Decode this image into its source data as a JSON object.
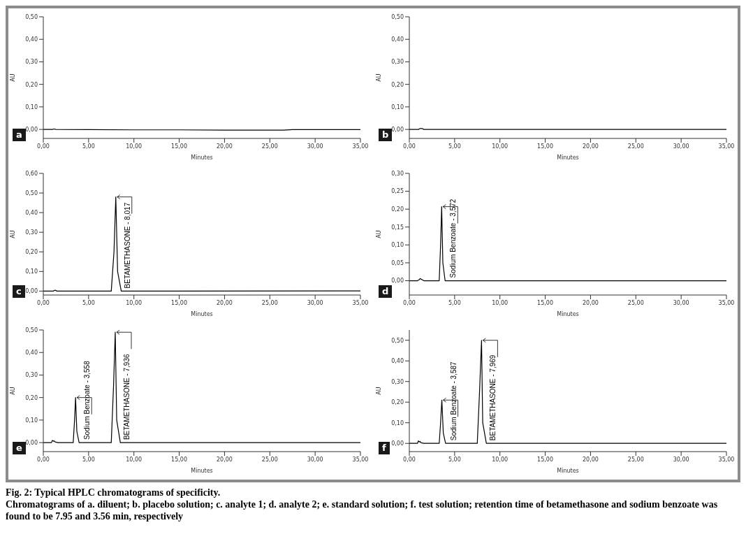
{
  "chart_data": [
    {
      "type": "line",
      "xlabel": "Minutes",
      "ylabel": "AU",
      "annotations": [
        "a"
      ],
      "x": [
        0,
        1.0,
        1.2,
        1.4,
        5,
        10,
        15,
        20,
        26.5,
        27.5,
        30,
        35
      ],
      "series": [
        {
          "color": "#000000",
          "values": [
            0.0,
            0.0,
            0.002,
            0.0,
            -0.001,
            -0.002,
            -0.002,
            -0.003,
            -0.003,
            -0.001,
            -0.001,
            -0.001
          ]
        }
      ],
      "xlim": [
        0,
        35
      ],
      "xticks": [
        {
          "value": 0,
          "label": "0,00"
        },
        {
          "value": 5,
          "label": "5,00"
        },
        {
          "value": 10,
          "label": "10,00"
        },
        {
          "value": 15,
          "label": "15,00"
        },
        {
          "value": 20,
          "label": "20,00"
        },
        {
          "value": 25,
          "label": "25,00"
        },
        {
          "value": 30,
          "label": "30,00"
        },
        {
          "value": 35,
          "label": "35,00"
        }
      ],
      "ylim": [
        -0.04,
        0.5
      ],
      "yticks": [
        {
          "value": 0,
          "label": "0,00"
        },
        {
          "value": 0.1,
          "label": "0,10"
        },
        {
          "value": 0.2,
          "label": "0,20"
        },
        {
          "value": 0.3,
          "label": "0,30"
        },
        {
          "value": 0.4,
          "label": "0,40"
        },
        {
          "value": 0.5,
          "label": "0,50"
        }
      ]
    },
    {
      "type": "line",
      "xlabel": "Minutes",
      "ylabel": "AU",
      "annotations": [
        "b"
      ],
      "x": [
        0,
        1.0,
        1.2,
        1.4,
        1.6,
        35
      ],
      "series": [
        {
          "color": "#000000",
          "values": [
            0.0,
            0.0,
            0.004,
            0.004,
            0.0,
            0.0
          ]
        }
      ],
      "xlim": [
        0,
        35
      ],
      "xticks": [
        {
          "value": 0,
          "label": "0,00"
        },
        {
          "value": 5,
          "label": "5,00"
        },
        {
          "value": 10,
          "label": "10,00"
        },
        {
          "value": 15,
          "label": "15,00"
        },
        {
          "value": 20,
          "label": "20,00"
        },
        {
          "value": 25,
          "label": "25,00"
        },
        {
          "value": 30,
          "label": "30,00"
        },
        {
          "value": 35,
          "label": "35,00"
        }
      ],
      "ylim": [
        -0.04,
        0.5
      ],
      "yticks": [
        {
          "value": 0,
          "label": "0,00"
        },
        {
          "value": 0.1,
          "label": "0,10"
        },
        {
          "value": 0.2,
          "label": "0,20"
        },
        {
          "value": 0.3,
          "label": "0,30"
        },
        {
          "value": 0.4,
          "label": "0,40"
        },
        {
          "value": 0.5,
          "label": "0,50"
        }
      ]
    },
    {
      "type": "line",
      "xlabel": "Minutes",
      "ylabel": "AU",
      "annotations": [
        "c",
        {
          "text": "BETAMETHASONE - 8,017",
          "x": 8.0,
          "y": 0.48
        }
      ],
      "x": [
        0,
        1.1,
        1.3,
        1.5,
        7.5,
        7.8,
        8.0,
        8.2,
        8.6,
        32,
        35
      ],
      "series": [
        {
          "color": "#000000",
          "values": [
            0.0,
            0.0,
            0.005,
            0.0,
            0.0,
            0.2,
            0.48,
            0.1,
            0.0,
            0.001,
            0.001
          ]
        }
      ],
      "xlim": [
        0,
        35
      ],
      "xticks": [
        {
          "value": 0,
          "label": "0,00"
        },
        {
          "value": 5,
          "label": "5,00"
        },
        {
          "value": 10,
          "label": "10,00"
        },
        {
          "value": 15,
          "label": "15,00"
        },
        {
          "value": 20,
          "label": "20,00"
        },
        {
          "value": 25,
          "label": "25,00"
        },
        {
          "value": 30,
          "label": "30,00"
        },
        {
          "value": 35,
          "label": "35,00"
        }
      ],
      "ylim": [
        -0.02,
        0.6
      ],
      "yticks": [
        {
          "value": 0,
          "label": "0,00"
        },
        {
          "value": 0.1,
          "label": "0,10"
        },
        {
          "value": 0.2,
          "label": "0,20"
        },
        {
          "value": 0.3,
          "label": "0,30"
        },
        {
          "value": 0.4,
          "label": "0,40"
        },
        {
          "value": 0.5,
          "label": "0,50"
        },
        {
          "value": 0.6,
          "label": "0,60"
        }
      ]
    },
    {
      "type": "line",
      "xlabel": "Minutes",
      "ylabel": "AU",
      "annotations": [
        "d",
        {
          "text": "Sodium Benzoate - 3,572",
          "x": 3.57,
          "y": 0.207
        }
      ],
      "x": [
        0,
        0.9,
        1.1,
        1.2,
        1.4,
        1.6,
        3.3,
        3.45,
        3.57,
        3.7,
        3.95,
        35
      ],
      "series": [
        {
          "color": "#000000",
          "values": [
            0.0,
            0.0,
            0.003,
            0.006,
            0.003,
            0.0,
            0.0,
            0.1,
            0.207,
            0.05,
            0.0,
            0.0
          ]
        }
      ],
      "xlim": [
        0,
        35
      ],
      "xticks": [
        {
          "value": 0,
          "label": "0,00"
        },
        {
          "value": 5,
          "label": "5,00"
        },
        {
          "value": 10,
          "label": "10,00"
        },
        {
          "value": 15,
          "label": "15,00"
        },
        {
          "value": 20,
          "label": "20,00"
        },
        {
          "value": 25,
          "label": "25,00"
        },
        {
          "value": 30,
          "label": "30,00"
        },
        {
          "value": 35,
          "label": "35,00"
        }
      ],
      "ylim": [
        -0.04,
        0.3
      ],
      "yticks": [
        {
          "value": 0,
          "label": "0,00"
        },
        {
          "value": 0.05,
          "label": "0,05"
        },
        {
          "value": 0.1,
          "label": "0,10"
        },
        {
          "value": 0.15,
          "label": "0,15"
        },
        {
          "value": 0.2,
          "label": "0,20"
        },
        {
          "value": 0.25,
          "label": "0,25"
        },
        {
          "value": 0.3,
          "label": "0,30"
        }
      ]
    },
    {
      "type": "line",
      "xlabel": "Minutes",
      "ylabel": "AU",
      "annotations": [
        "e",
        {
          "text": "Sodium Benzoate - 3,558",
          "x": 3.56,
          "y": 0.2
        },
        {
          "text": "BETAMETHASONE - 7,936",
          "x": 7.94,
          "y": 0.49
        }
      ],
      "x": [
        0,
        0.9,
        1.0,
        1.1,
        1.2,
        1.3,
        1.6,
        3.3,
        3.45,
        3.56,
        3.7,
        3.95,
        7.5,
        7.75,
        7.94,
        8.1,
        8.5,
        35
      ],
      "series": [
        {
          "color": "#000000",
          "values": [
            0.0,
            0.0,
            0.01,
            0.006,
            0.008,
            0.003,
            0.0,
            0.0,
            0.1,
            0.2,
            0.05,
            0.0,
            0.0,
            0.25,
            0.49,
            0.1,
            0.0,
            0.0
          ]
        }
      ],
      "xlim": [
        0,
        35
      ],
      "xticks": [
        {
          "value": 0,
          "label": "0,00"
        },
        {
          "value": 5,
          "label": "5,00"
        },
        {
          "value": 10,
          "label": "10,00"
        },
        {
          "value": 15,
          "label": "15,00"
        },
        {
          "value": 20,
          "label": "20,00"
        },
        {
          "value": 25,
          "label": "25,00"
        },
        {
          "value": 30,
          "label": "30,00"
        },
        {
          "value": 35,
          "label": "35,00"
        }
      ],
      "ylim": [
        -0.04,
        0.5
      ],
      "yticks": [
        {
          "value": 0,
          "label": "0,00"
        },
        {
          "value": 0.1,
          "label": "0,10"
        },
        {
          "value": 0.2,
          "label": "0,20"
        },
        {
          "value": 0.3,
          "label": "0,30"
        },
        {
          "value": 0.4,
          "label": "0,40"
        },
        {
          "value": 0.5,
          "label": "0,50"
        }
      ]
    },
    {
      "type": "line",
      "xlabel": "Minutes",
      "ylabel": "AU",
      "annotations": [
        "f",
        {
          "text": "Sodium Benzoate - 3,587",
          "x": 3.59,
          "y": 0.21
        },
        {
          "text": "BETAMETHASONE - 7,969",
          "x": 7.97,
          "y": 0.5
        },
        "Fig. 2: Typical HPLC chromatograms of specificity.",
        "Chromatograms of a. diluent; b. placebo solution; c. analyte 1; d. analyte 2; e. standard solution; f. test solution; retention time of betamethasone and sodium benzoate was found to be 7.95 and 3.56 min, respectively"
      ],
      "x": [
        0,
        0.9,
        1.0,
        1.1,
        1.2,
        1.3,
        1.6,
        3.3,
        3.45,
        3.59,
        3.75,
        4.0,
        7.5,
        7.75,
        7.97,
        8.1,
        8.5,
        35
      ],
      "series": [
        {
          "color": "#000000",
          "values": [
            0.0,
            0.0,
            0.012,
            0.007,
            0.009,
            0.003,
            0.0,
            0.0,
            0.1,
            0.21,
            0.05,
            0.0,
            0.0,
            0.25,
            0.5,
            0.1,
            0.0,
            0.0
          ]
        }
      ],
      "xlim": [
        0,
        35
      ],
      "xticks": [
        {
          "value": 0,
          "label": "0,00"
        },
        {
          "value": 5,
          "label": "5,00"
        },
        {
          "value": 10,
          "label": "10,00"
        },
        {
          "value": 15,
          "label": "15,00"
        },
        {
          "value": 20,
          "label": "20,00"
        },
        {
          "value": 25,
          "label": "25,00"
        },
        {
          "value": 30,
          "label": "30,00"
        },
        {
          "value": 35,
          "label": "35,00"
        }
      ],
      "ylim": [
        -0.04,
        0.55
      ],
      "yticks": [
        {
          "value": 0,
          "label": "0,00"
        },
        {
          "value": 0.1,
          "label": "0,10"
        },
        {
          "value": 0.2,
          "label": "0,20"
        },
        {
          "value": 0.3,
          "label": "0,30"
        },
        {
          "value": 0.4,
          "label": "0,40"
        },
        {
          "value": 0.5,
          "label": "0,50"
        }
      ]
    }
  ]
}
